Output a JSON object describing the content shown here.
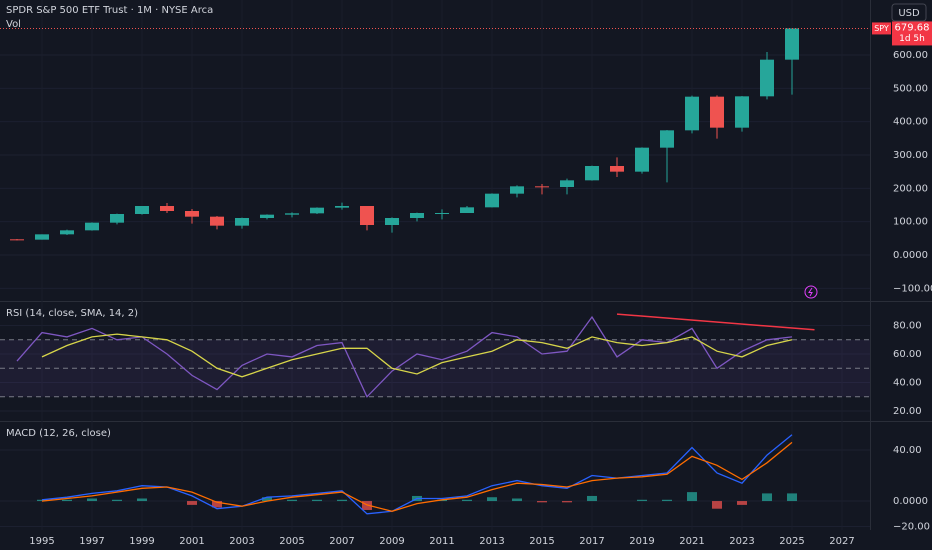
{
  "header": {
    "title": "SPDR S&P 500 ETF Trust · 1M · NYSE Arca",
    "volume_label": "Vol",
    "currency_button": "USD"
  },
  "chart_data": [
    {
      "type": "candlestick",
      "symbol": "SPY",
      "current_price": 679.68,
      "countdown": "1d 5h",
      "x": [
        1994,
        1995,
        1996,
        1997,
        1998,
        1999,
        2000,
        2001,
        2002,
        2003,
        2004,
        2005,
        2006,
        2007,
        2008,
        2009,
        2010,
        2011,
        2012,
        2013,
        2014,
        2015,
        2016,
        2017,
        2018,
        2019,
        2020,
        2021,
        2022,
        2023,
        2024,
        2025
      ],
      "open": [
        47,
        46,
        62,
        74,
        97,
        123,
        147,
        132,
        115,
        88,
        111,
        121,
        125,
        142,
        147,
        90,
        111,
        126,
        126,
        143,
        184,
        206,
        204,
        224,
        267,
        250,
        322,
        374,
        475,
        382,
        476,
        586
      ],
      "high": [
        48,
        62,
        76,
        98,
        124,
        147,
        156,
        138,
        117,
        112,
        122,
        128,
        143,
        157,
        147,
        113,
        127,
        137,
        147,
        185,
        209,
        213,
        229,
        268,
        293,
        323,
        375,
        478,
        479,
        477,
        609,
        680
      ],
      "low": [
        44,
        46,
        60,
        73,
        92,
        121,
        126,
        94,
        77,
        79,
        107,
        113,
        123,
        136,
        74,
        67,
        101,
        107,
        126,
        143,
        173,
        182,
        182,
        223,
        234,
        244,
        218,
        365,
        349,
        370,
        467,
        481
      ],
      "close": [
        46,
        62,
        74,
        97,
        123,
        147,
        132,
        115,
        88,
        111,
        121,
        125,
        142,
        147,
        90,
        111,
        126,
        126,
        143,
        184,
        206,
        204,
        224,
        267,
        250,
        322,
        374,
        475,
        382,
        476,
        586,
        679.68
      ],
      "up_color": "#26a69a",
      "down_color": "#ef5350",
      "ylim": [
        -135,
        765
      ],
      "yticks": [
        {
          "value": -100,
          "label": "−100.00"
        },
        {
          "value": 0,
          "label": "0.0000"
        },
        {
          "value": 100,
          "label": "100.00"
        },
        {
          "value": 200,
          "label": "200.00"
        },
        {
          "value": 300,
          "label": "300.00"
        },
        {
          "value": 400,
          "label": "400.00"
        },
        {
          "value": 500,
          "label": "500.00"
        },
        {
          "value": 600,
          "label": "600.00"
        }
      ]
    },
    {
      "type": "line",
      "title": "RSI (14, close, SMA, 14, 2)",
      "x": [
        1994,
        1995,
        1996,
        1997,
        1998,
        1999,
        2000,
        2001,
        2002,
        2003,
        2004,
        2005,
        2006,
        2007,
        2008,
        2009,
        2010,
        2011,
        2012,
        2013,
        2014,
        2015,
        2016,
        2017,
        2018,
        2019,
        2020,
        2021,
        2022,
        2023,
        2024,
        2025
      ],
      "series": [
        {
          "type": "line",
          "color": "#7e57c2",
          "values": [
            55,
            75,
            72,
            78,
            70,
            72,
            60,
            45,
            35,
            52,
            60,
            58,
            66,
            68,
            30,
            48,
            60,
            56,
            62,
            75,
            72,
            60,
            62,
            86,
            58,
            70,
            68,
            78,
            50,
            62,
            70,
            72
          ]
        },
        {
          "type": "line",
          "color": "#d7d54a",
          "values": [
            null,
            58,
            66,
            72,
            74,
            72,
            70,
            62,
            50,
            44,
            50,
            56,
            60,
            64,
            64,
            50,
            46,
            54,
            58,
            62,
            70,
            68,
            64,
            72,
            68,
            66,
            68,
            72,
            62,
            58,
            66,
            70
          ]
        }
      ],
      "bands": [
        30,
        50,
        70
      ],
      "band_color": "#7e57c2",
      "divergence": {
        "x": [
          2018,
          2025.9
        ],
        "y": [
          88,
          77
        ],
        "color": "#f23645"
      },
      "ylim": [
        13.7,
        95.8
      ],
      "yticks": [
        {
          "value": 20,
          "label": "20.00"
        },
        {
          "value": 40,
          "label": "40.00"
        },
        {
          "value": 60,
          "label": "60.00"
        },
        {
          "value": 80,
          "label": "80.00"
        }
      ]
    },
    {
      "type": "line",
      "title": "MACD (12, 26, close)",
      "x": [
        1995,
        1996,
        1997,
        1998,
        1999,
        2000,
        2001,
        2002,
        2003,
        2004,
        2005,
        2006,
        2007,
        2008,
        2009,
        2010,
        2011,
        2012,
        2013,
        2014,
        2015,
        2016,
        2017,
        2018,
        2019,
        2020,
        2021,
        2022,
        2023,
        2024,
        2025
      ],
      "series": [
        {
          "type": "histogram",
          "up_color": "#26a69a",
          "down_color": "#ef5350",
          "values": [
            1,
            1,
            2,
            1,
            2,
            0,
            -3,
            -5,
            0,
            3,
            1,
            1,
            1,
            -7,
            0,
            4,
            1,
            1,
            3,
            2,
            -1,
            -1,
            4,
            0,
            1,
            1,
            7,
            -6,
            -3,
            6,
            6
          ]
        },
        {
          "type": "line",
          "color": "#2962ff",
          "values": [
            1,
            3,
            6,
            8,
            12,
            11,
            4,
            -6,
            -4,
            3,
            4,
            6,
            8,
            -10,
            -8,
            2,
            2,
            4,
            12,
            16,
            12,
            10,
            20,
            18,
            20,
            22,
            42,
            22,
            14,
            36,
            52
          ]
        },
        {
          "type": "line",
          "color": "#ff6d00",
          "values": [
            0,
            2,
            4,
            7,
            10,
            11,
            7,
            -1,
            -4,
            0,
            3,
            5,
            7,
            -3,
            -8,
            -2,
            1,
            3,
            9,
            14,
            13,
            11,
            16,
            18,
            19,
            21,
            35,
            28,
            17,
            30,
            46
          ]
        }
      ],
      "ylim": [
        -22.7,
        61.2
      ],
      "yticks": [
        {
          "value": -20,
          "label": "−20.00"
        },
        {
          "value": 0,
          "label": "0.0000"
        },
        {
          "value": 40,
          "label": "40.00"
        }
      ],
      "xlim": [
        1993.32,
        2028.12
      ],
      "xticks": [
        1995,
        1997,
        1999,
        2001,
        2003,
        2005,
        2007,
        2009,
        2011,
        2013,
        2015,
        2017,
        2019,
        2021,
        2023,
        2025,
        2027
      ]
    }
  ]
}
